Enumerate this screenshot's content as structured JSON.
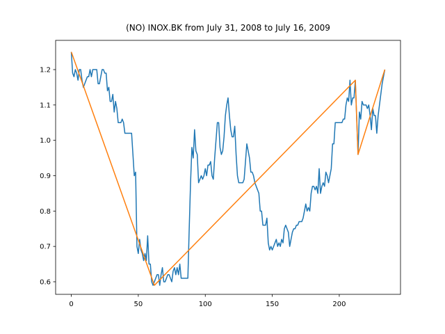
{
  "chart_data": {
    "type": "line",
    "title": "(NO) INOX.BK from July 31, 2008 to July 16, 2009",
    "xlim": [
      -11.7,
      245.7
    ],
    "xticks": [
      0,
      50,
      100,
      150,
      200
    ],
    "ylim": [
      0.5645,
      1.2827
    ],
    "yticks": [
      0.6,
      0.7,
      0.8,
      0.9,
      {
        "value": 1,
        "label": "1.0"
      },
      1.1,
      1.2
    ],
    "series": [
      {
        "color": "#1f77b4",
        "x": [
          0,
          1,
          2,
          3,
          4,
          5,
          6,
          7,
          8,
          9,
          10,
          11,
          12,
          13,
          14,
          15,
          16,
          17,
          18,
          19,
          20,
          21,
          22,
          23,
          24,
          25,
          26,
          27,
          28,
          29,
          30,
          31,
          32,
          33,
          34,
          35,
          36,
          37,
          38,
          39,
          40,
          41,
          42,
          43,
          44,
          45,
          46,
          47,
          48,
          49,
          50,
          51,
          52,
          53,
          54,
          55,
          56,
          57,
          58,
          59,
          60,
          61,
          62,
          63,
          64,
          65,
          66,
          67,
          68,
          69,
          70,
          71,
          72,
          73,
          74,
          75,
          76,
          77,
          78,
          79,
          80,
          81,
          82,
          83,
          84,
          85,
          86,
          87,
          88,
          89,
          90,
          91,
          92,
          93,
          94,
          95,
          96,
          97,
          98,
          99,
          100,
          101,
          102,
          103,
          104,
          105,
          106,
          107,
          108,
          109,
          110,
          111,
          112,
          113,
          114,
          115,
          116,
          117,
          118,
          119,
          120,
          121,
          122,
          123,
          124,
          125,
          126,
          127,
          128,
          129,
          130,
          131,
          132,
          133,
          134,
          135,
          136,
          137,
          138,
          139,
          140,
          141,
          142,
          143,
          144,
          145,
          146,
          147,
          148,
          149,
          150,
          151,
          152,
          153,
          154,
          155,
          156,
          157,
          158,
          159,
          160,
          161,
          162,
          163,
          164,
          165,
          166,
          167,
          168,
          169,
          170,
          171,
          172,
          173,
          174,
          175,
          176,
          177,
          178,
          179,
          180,
          181,
          182,
          183,
          184,
          185,
          186,
          187,
          188,
          189,
          190,
          191,
          192,
          193,
          194,
          195,
          196,
          197,
          198,
          199,
          200,
          201,
          202,
          203,
          204,
          205,
          206,
          207,
          208,
          209,
          210,
          211,
          212,
          213,
          214,
          215,
          216,
          217,
          218,
          219,
          220,
          221,
          222,
          223,
          224,
          225,
          226,
          227,
          228,
          229,
          230,
          231,
          232,
          233,
          234
        ],
        "values": [
          1.25,
          1.19,
          1.18,
          1.2,
          1.19,
          1.17,
          1.2,
          1.2,
          1.17,
          1.15,
          1.16,
          1.17,
          1.18,
          1.18,
          1.2,
          1.18,
          1.2,
          1.2,
          1.2,
          1.2,
          1.16,
          1.16,
          1.18,
          1.2,
          1.2,
          1.19,
          1.19,
          1.14,
          1.15,
          1.11,
          1.11,
          1.13,
          1.08,
          1.11,
          1.09,
          1.05,
          1.05,
          1.05,
          1.06,
          1.05,
          1.02,
          1.02,
          1.02,
          1.02,
          1.02,
          1.02,
          0.96,
          0.9,
          0.91,
          0.7,
          0.68,
          0.72,
          0.69,
          0.68,
          0.66,
          0.68,
          0.66,
          0.73,
          0.65,
          0.65,
          0.6,
          0.59,
          0.6,
          0.61,
          0.62,
          0.62,
          0.59,
          0.62,
          0.64,
          0.6,
          0.6,
          0.61,
          0.62,
          0.62,
          0.61,
          0.6,
          0.63,
          0.64,
          0.62,
          0.64,
          0.62,
          0.65,
          0.61,
          0.61,
          0.61,
          0.61,
          0.61,
          0.61,
          0.75,
          0.88,
          0.98,
          0.95,
          1.03,
          0.97,
          0.96,
          0.88,
          0.89,
          0.9,
          0.89,
          0.9,
          0.92,
          0.9,
          0.93,
          0.93,
          0.94,
          0.9,
          0.89,
          0.95,
          1.0,
          1.05,
          1.05,
          0.98,
          0.96,
          0.97,
          1.01,
          1.07,
          1.1,
          1.12,
          1.07,
          1.03,
          1.01,
          1.01,
          1.04,
          0.96,
          0.9,
          0.88,
          0.88,
          0.88,
          0.88,
          0.89,
          0.94,
          0.99,
          0.97,
          0.95,
          0.91,
          0.91,
          0.9,
          0.88,
          0.87,
          0.86,
          0.85,
          0.8,
          0.8,
          0.76,
          0.76,
          0.76,
          0.78,
          0.71,
          0.69,
          0.7,
          0.69,
          0.7,
          0.71,
          0.72,
          0.7,
          0.71,
          0.7,
          0.72,
          0.71,
          0.75,
          0.76,
          0.75,
          0.74,
          0.7,
          0.72,
          0.74,
          0.75,
          0.75,
          0.76,
          0.76,
          0.77,
          0.77,
          0.77,
          0.78,
          0.8,
          0.82,
          0.8,
          0.81,
          0.8,
          0.85,
          0.87,
          0.87,
          0.86,
          0.87,
          0.85,
          0.92,
          0.85,
          0.87,
          0.88,
          0.87,
          0.91,
          0.9,
          0.88,
          0.9,
          0.92,
          0.99,
          0.99,
          1.05,
          1.05,
          1.05,
          1.05,
          1.05,
          1.05,
          1.06,
          1.06,
          1.1,
          1.12,
          1.11,
          1.17,
          1.1,
          1.12,
          1.12,
          1.17,
          1.06,
          0.96,
          1.08,
          1.06,
          1.11,
          1.1,
          1.1,
          1.1,
          1.09,
          1.1,
          1.07,
          1.03,
          1.09,
          1.07,
          1.07,
          1.02,
          1.07,
          1.1,
          1.13,
          1.16,
          1.18,
          1.2
        ]
      },
      {
        "color": "#ff7f0e",
        "x": [
          0,
          62,
          212,
          214,
          234
        ],
        "values": [
          1.25,
          0.59,
          1.17,
          0.96,
          1.2
        ]
      }
    ]
  }
}
